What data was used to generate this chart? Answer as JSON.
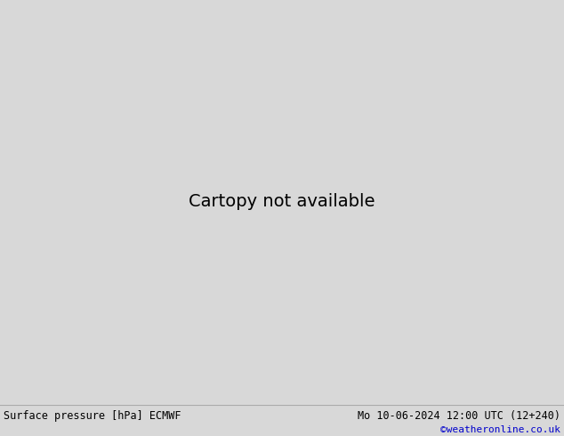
{
  "title_left": "Surface pressure [hPa] ECMWF",
  "title_right": "Mo 10-06-2024 12:00 UTC (12+240)",
  "credit": "©weatheronline.co.uk",
  "bg_gray": "#d8d8d8",
  "land_green": "#b5d5a0",
  "land_light": "#c8e0b0",
  "sea_gray": "#d0d0d0",
  "border_dark": "#202020",
  "border_gray": "#888888",
  "red": "#cc0000",
  "black": "#000000",
  "blue": "#0000cc",
  "footer_bg": "#f0f0f0",
  "figsize": [
    6.34,
    4.9
  ],
  "dpi": 100
}
